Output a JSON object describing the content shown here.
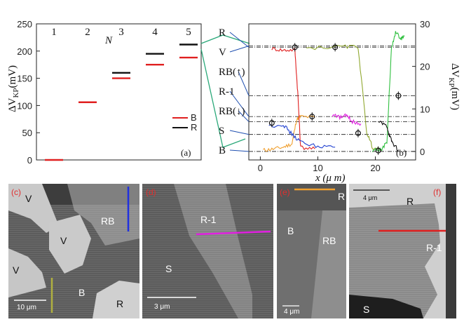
{
  "chart_data": [
    {
      "panel_label": "(a)",
      "type": "scatter",
      "xlabel": "N",
      "ylabel": "ΔV_KP(mV)",
      "ylim": [
        0,
        250
      ],
      "yticks": [
        "0",
        "50",
        "100",
        "150",
        "200",
        "250"
      ],
      "xtick_labels": [
        "1",
        "2",
        "3",
        "4",
        "5"
      ],
      "series": [
        {
          "name": "B",
          "color": "#e02020",
          "values": [
            {
              "x": 1,
              "y": 0
            },
            {
              "x": 2,
              "y": 106
            },
            {
              "x": 3,
              "y": 150
            },
            {
              "x": 4,
              "y": 175
            },
            {
              "x": 5,
              "y": 188
            }
          ]
        },
        {
          "name": "R",
          "color": "#111111",
          "values": [
            {
              "x": 3,
              "y": 160
            },
            {
              "x": 4,
              "y": 195
            },
            {
              "x": 5,
              "y": 212
            }
          ]
        }
      ],
      "legend_position": "lower-right"
    },
    {
      "panel_label": "(b)",
      "type": "line",
      "xlabel": "x (μ m)",
      "ylabel": "ΔV_KP(mV)",
      "xlim": [
        -2,
        27
      ],
      "ylim": [
        -2,
        30
      ],
      "xticks": [
        "0",
        "10",
        "20"
      ],
      "yticks": [
        "0",
        "10",
        "20",
        "30"
      ],
      "level_labels": [
        "R",
        "V",
        "RB(↑)",
        "R-1",
        "RB(↓)",
        "S",
        "B"
      ],
      "reference_levels": [
        24.5,
        24.8,
        13.1,
        8.2,
        7.0,
        4.0,
        0.0
      ],
      "series": [
        {
          "color": "#f0a030",
          "values": [
            {
              "x": 0.5,
              "y": 0.3
            },
            {
              "x": 2,
              "y": 0.5
            },
            {
              "x": 4,
              "y": 1.0
            },
            {
              "x": 5.5,
              "y": 1.8
            },
            {
              "x": 6.3,
              "y": 7.5
            },
            {
              "x": 7,
              "y": 8.2
            },
            {
              "x": 9.5,
              "y": 8.0
            }
          ]
        },
        {
          "color": "#e02020",
          "values": [
            {
              "x": 2,
              "y": 24.2
            },
            {
              "x": 4,
              "y": 23.8
            },
            {
              "x": 6,
              "y": 23.9
            },
            {
              "x": 6.5,
              "y": 14
            },
            {
              "x": 7,
              "y": 1.0
            },
            {
              "x": 9.5,
              "y": 0.6
            }
          ]
        },
        {
          "color": "#2040d0",
          "values": [
            {
              "x": 1.5,
              "y": 6.0
            },
            {
              "x": 4,
              "y": 6.3
            },
            {
              "x": 5.5,
              "y": 4.0
            },
            {
              "x": 7,
              "y": 2.2
            },
            {
              "x": 10,
              "y": 1.2
            },
            {
              "x": 13,
              "y": 1.0
            }
          ]
        },
        {
          "color": "#e020e0",
          "values": [
            {
              "x": 12.5,
              "y": 8.5
            },
            {
              "x": 14,
              "y": 8.0
            },
            {
              "x": 15,
              "y": 8.5
            },
            {
              "x": 16,
              "y": 7.0
            },
            {
              "x": 17.5,
              "y": 6.5
            }
          ]
        },
        {
          "color": "#90a830",
          "values": [
            {
              "x": 8,
              "y": 24.3
            },
            {
              "x": 14,
              "y": 24.6
            },
            {
              "x": 17,
              "y": 24.6
            },
            {
              "x": 18.5,
              "y": 4.5
            },
            {
              "x": 19.5,
              "y": 1.0
            },
            {
              "x": 21,
              "y": 0.2
            }
          ]
        },
        {
          "color": "#30c040",
          "values": [
            {
              "x": 19.5,
              "y": 0.3
            },
            {
              "x": 21,
              "y": 0.5
            },
            {
              "x": 22,
              "y": 2
            },
            {
              "x": 22.8,
              "y": 24.4
            },
            {
              "x": 23.5,
              "y": 28
            },
            {
              "x": 24.5,
              "y": 26.5
            },
            {
              "x": 25,
              "y": 27
            }
          ]
        },
        {
          "color": "#111111",
          "values": [
            {
              "x": 20.5,
              "y": 7.0
            },
            {
              "x": 22,
              "y": 6.0
            },
            {
              "x": 22.5,
              "y": 3.5
            },
            {
              "x": 23,
              "y": 2
            },
            {
              "x": 24,
              "y": 0.3
            }
          ]
        }
      ],
      "markers": [
        {
          "x": 6,
          "y": 24.5
        },
        {
          "x": 13,
          "y": 24.5
        },
        {
          "x": 2,
          "y": 6.7
        },
        {
          "x": 9,
          "y": 8.2
        },
        {
          "x": 17,
          "y": 4.3
        },
        {
          "x": 20.5,
          "y": 0.2
        },
        {
          "x": 24,
          "y": 13.1
        }
      ]
    }
  ],
  "images": [
    {
      "panel_label": "(c)",
      "regions": [
        "V",
        "V",
        "V",
        "RB",
        "B",
        "R"
      ],
      "scalebar": "10 μm"
    },
    {
      "panel_label": "(d)",
      "regions": [
        "R-1",
        "S"
      ],
      "scalebar": "3 μm"
    },
    {
      "panel_label": "(e)",
      "regions": [
        "R",
        "B",
        "RB"
      ],
      "scalebar": "4 μm"
    },
    {
      "panel_label": "(f)",
      "regions": [
        "R",
        "R-1",
        "S"
      ],
      "scalebar": "4 μm"
    }
  ]
}
